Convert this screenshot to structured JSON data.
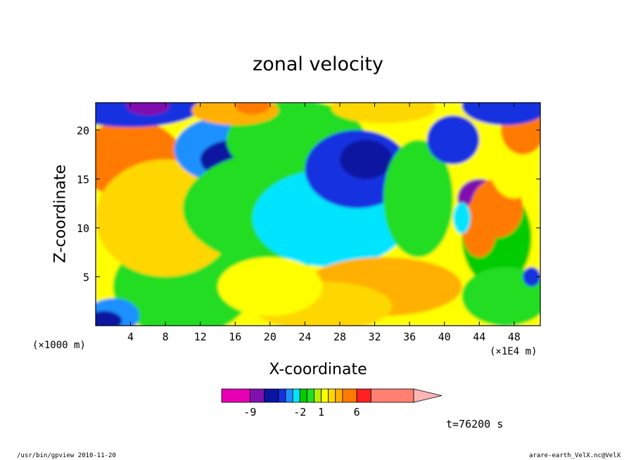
{
  "chart_data": {
    "type": "heatmap",
    "title": "zonal velocity",
    "xlabel": "X-coordinate",
    "ylabel": "Z-coordinate",
    "x_unit_label": "(×1000 m)",
    "x_scale_label": "(×1E4 m)",
    "xlim": [
      0,
      51
    ],
    "ylim": [
      0,
      22.8
    ],
    "x_ticks": [
      "4",
      "8",
      "12",
      "16",
      "20",
      "24",
      "28",
      "32",
      "36",
      "40",
      "44",
      "48"
    ],
    "x_tick_values": [
      4,
      8,
      12,
      16,
      20,
      24,
      28,
      32,
      36,
      40,
      44,
      48
    ],
    "y_ticks": [
      "5",
      "10",
      "15",
      "20"
    ],
    "y_tick_values": [
      5,
      10,
      15,
      20
    ],
    "colorbar": {
      "levels": [
        -13,
        -9,
        -7,
        -5,
        -4,
        -3,
        -2,
        -1,
        0,
        1,
        2,
        3,
        4,
        6,
        8,
        14,
        17
      ],
      "colors": [
        "#e600b4",
        "#8010b0",
        "#0a14a0",
        "#1430e0",
        "#1e90ff",
        "#00e5ff",
        "#00cc00",
        "#22dd22",
        "#b0f000",
        "#ffff00",
        "#ffd700",
        "#ffb000",
        "#ff7a00",
        "#ff2020",
        "#ff8070",
        "#ffb4b4"
      ],
      "tick_labels": [
        "-9",
        "-2",
        "1",
        "6"
      ],
      "tick_values": [
        -9,
        -2,
        1,
        6
      ]
    },
    "grid": false,
    "legend": "colorbar-bottom"
  },
  "annotations": {
    "time_label": "t=76200 s",
    "footer_left": "/usr/bin/gpview  2010-11-20",
    "footer_right": "arare-earth_VelX.nc@VelX"
  }
}
